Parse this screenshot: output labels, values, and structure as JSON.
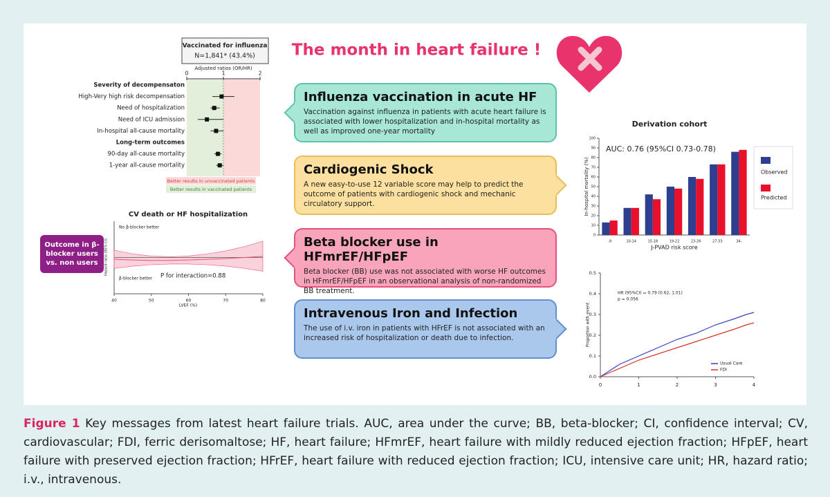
{
  "title": "The month in heart failure !",
  "panels": [
    {
      "heading": "Influenza vaccination in acute HF",
      "text": "Vaccination against influenza in patients with acute heart failure is associated with lower hospitalization and in-hospital mortality as well as improved one-year mortality",
      "color": "#a8e6d6",
      "border": "#5cc4a8",
      "pointer": "left"
    },
    {
      "heading": "Cardiogenic Shock",
      "text": "A new easy-to-use 12 variable score may help to predict the outcome of patients with cardiogenic shock and mechanic circulatory support.",
      "color": "#fbe0a0",
      "border": "#e8bf55",
      "pointer": "right"
    },
    {
      "heading": "Beta blocker use in HFmrEF/HFpEF",
      "text": "Beta blocker (BB) use was not associated with worse HF outcomes in HFmrEF/HFpEF in an observational analysis of non-randomized BB treatment.",
      "color": "#f8a5bb",
      "border": "#e8507a",
      "pointer": "left"
    },
    {
      "heading": "Intravenous Iron and Infection",
      "text": "The use of i.v. iron in patients with HFrEF is not associated with an increased risk of hospitalization or death due to infection.",
      "color": "#a9c8ec",
      "border": "#5f8fd0",
      "pointer": "right"
    }
  ],
  "forest": {
    "type": "forest",
    "title": "Vaccinated for influenza",
    "subtitle": "N=1,841* (43.4%)",
    "axis_label": "Adjusted ratios (OR/HR)",
    "xlim": [
      0,
      2
    ],
    "xticks": [
      0,
      1,
      2
    ],
    "reference": 1,
    "rows": [
      {
        "label": "Severity of decompensaton",
        "header": true
      },
      {
        "label": "High-Very high risk decompensation",
        "value": 0.95,
        "low": 0.7,
        "high": 1.3
      },
      {
        "label": "Need of hospitalization",
        "value": 0.75,
        "low": 0.65,
        "high": 0.9
      },
      {
        "label": "Need of ICU admission",
        "value": 0.55,
        "low": 0.3,
        "high": 1.0
      },
      {
        "label": "In-hospital all-cause mortality",
        "value": 0.8,
        "low": 0.65,
        "high": 1.0
      },
      {
        "label": "Long-term outcomes",
        "header": true
      },
      {
        "label": "90-day all-cause mortality",
        "value": 0.85,
        "low": 0.75,
        "high": 0.95
      },
      {
        "label": "1-year all-cause mortality",
        "value": 0.9,
        "low": 0.8,
        "high": 1.0
      }
    ],
    "legend": [
      "Better results in unvaccinated patients",
      "Better results in vaccinated patients"
    ]
  },
  "band": {
    "type": "band",
    "title": "CV death or HF hospitalization",
    "y_label": "Hazard ratio (95% CI)",
    "x_label": "LVEF (%)",
    "annotations": [
      "No β-blocker better",
      "β-blocker better",
      "P for interaction=0.88"
    ],
    "side_label": "Outcome in β-blocker users vs. non users",
    "xlim": [
      40,
      80
    ],
    "xticks": [
      40,
      50,
      60,
      70,
      80
    ],
    "ylim": [
      0,
      2
    ],
    "reference": 1,
    "x": [
      40,
      45,
      50,
      55,
      60,
      65,
      70,
      75,
      80
    ],
    "values": [
      0.95,
      0.93,
      0.92,
      0.92,
      0.93,
      0.95,
      0.97,
      1.0,
      1.03
    ],
    "lower": [
      0.7,
      0.76,
      0.8,
      0.82,
      0.82,
      0.8,
      0.76,
      0.7,
      0.62
    ],
    "upper": [
      1.2,
      1.1,
      1.04,
      1.02,
      1.04,
      1.1,
      1.18,
      1.3,
      1.45
    ],
    "color": "#e8507a"
  },
  "bar": {
    "type": "bar",
    "title": "Derivation cohort",
    "annotation": "AUC: 0.76 (95%CI 0.73-0.78)",
    "x_label": "J-PVAD risk score",
    "y_label": "In-hospital mortality (%)",
    "categories": [
      "-9",
      "10-14",
      "15-18",
      "19-22",
      "23-26",
      "27-33",
      "34-"
    ],
    "series": [
      {
        "name": "Observed",
        "color": "#2e3f8f",
        "values": [
          13,
          28,
          42,
          50,
          60,
          73,
          86
        ]
      },
      {
        "name": "Predicted",
        "color": "#e8102a",
        "values": [
          15,
          28,
          37,
          48,
          58,
          73,
          88
        ]
      }
    ],
    "ylim": [
      0,
      100
    ],
    "yticks": [
      0,
      10,
      20,
      30,
      40,
      50,
      60,
      70,
      80,
      90,
      100
    ]
  },
  "km": {
    "type": "line",
    "annotation": "HR (95%CI) = 0.79 (0.62, 1.01)",
    "annotation2": "p = 0.056",
    "y_label": "Proportion with event",
    "xlim": [
      0,
      4
    ],
    "xticks": [
      0,
      1,
      2,
      3,
      4
    ],
    "ylim": [
      0,
      0.5
    ],
    "yticks": [
      {
        "value": 0,
        "label": "0.0"
      },
      0.1,
      0.2,
      0.3,
      0.4,
      0.5
    ],
    "x": [
      0,
      0.25,
      0.5,
      1,
      1.5,
      2,
      2.5,
      3,
      3.5,
      3.8,
      4
    ],
    "series": [
      {
        "name": "Usual Care",
        "color": "#3a3fc0",
        "values": [
          0,
          0.03,
          0.06,
          0.1,
          0.14,
          0.18,
          0.21,
          0.25,
          0.28,
          0.3,
          0.31
        ]
      },
      {
        "name": "FDI",
        "color": "#d8302a",
        "values": [
          0,
          0.02,
          0.04,
          0.08,
          0.11,
          0.14,
          0.17,
          0.2,
          0.23,
          0.25,
          0.26
        ]
      }
    ]
  },
  "caption": {
    "label": "Figure 1",
    "text": "Key messages from latest heart failure trials. AUC, area under the curve; BB, beta-blocker; CI, confidence interval; CV, cardiovascular; FDI, ferric derisomaltose; HF, heart failure; HFmrEF, heart failure with mildly reduced ejection fraction; HFpEF, heart failure with preserved ejection fraction; HFrEF, heart failure with reduced ejection fraction; ICU, intensive care unit; HR, hazard ratio; i.v., intravenous."
  }
}
